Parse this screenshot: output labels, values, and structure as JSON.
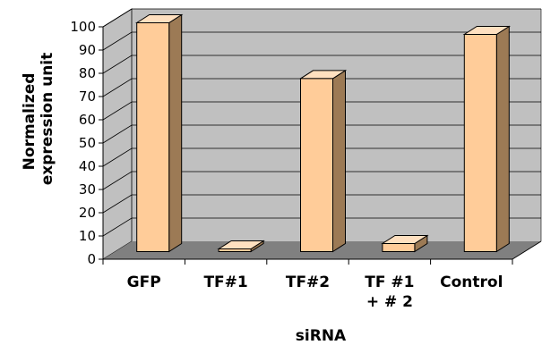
{
  "chart_data": {
    "type": "bar",
    "style": "3d-column",
    "categories": [
      [
        "GFP"
      ],
      [
        "TF#1"
      ],
      [
        "TF#2"
      ],
      [
        "TF #1",
        "+ # 2"
      ],
      [
        "Control"
      ]
    ],
    "values": [
      100,
      1,
      76,
      5,
      95
    ],
    "xlabel": "siRNA",
    "ylabel": [
      "Normalized",
      "expression unit"
    ],
    "ylim": [
      0,
      100
    ],
    "yticks": [
      0,
      10,
      20,
      30,
      40,
      50,
      60,
      70,
      80,
      90,
      100
    ],
    "grid": true,
    "legend": "none",
    "colors": {
      "bar_front": "#ffcc99",
      "bar_top": "#ffe0c0",
      "bar_side": "#9c7a55",
      "wall": "#c0c0c0",
      "floor": "#808080",
      "gridline": "#000000"
    }
  }
}
